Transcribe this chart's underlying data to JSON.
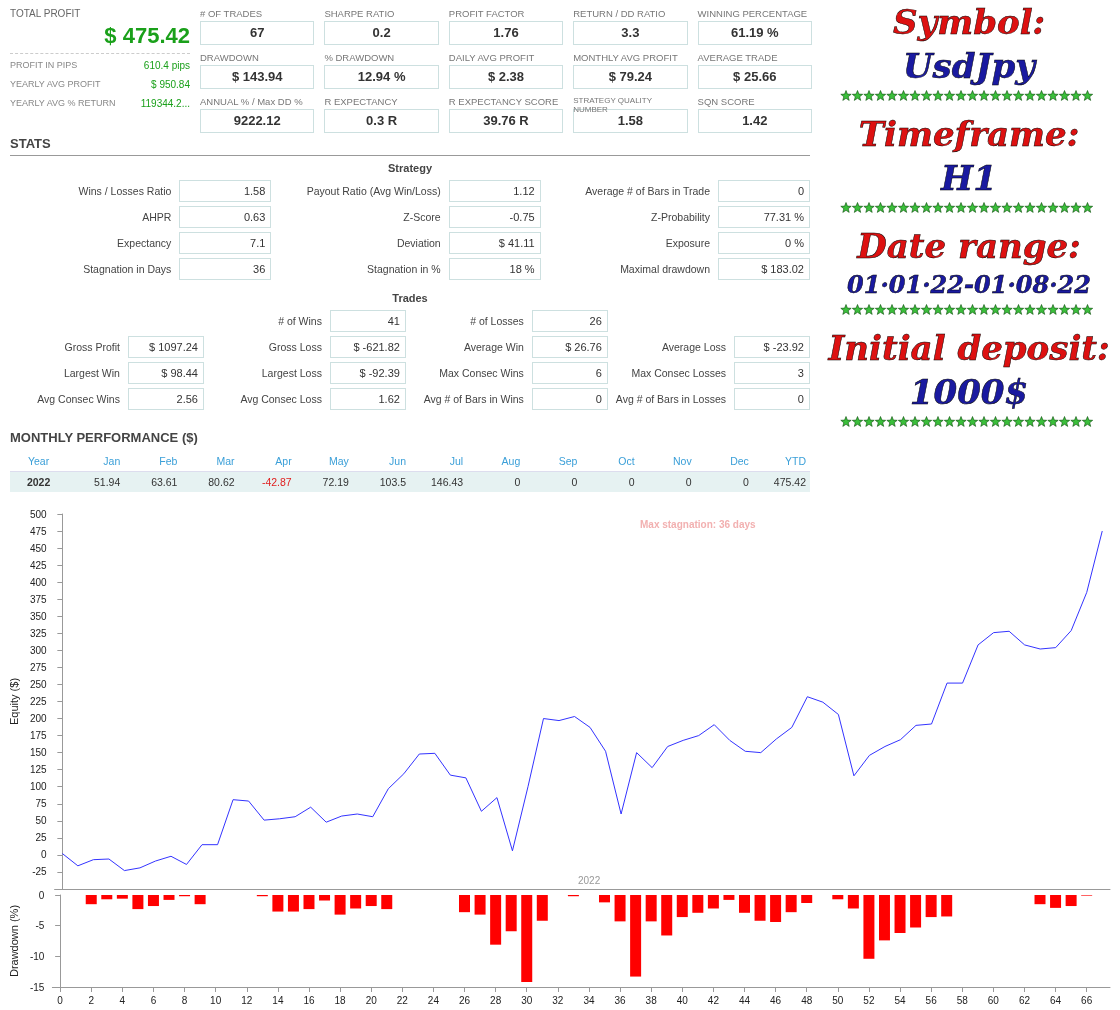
{
  "chart_data": [
    {
      "type": "other",
      "title": "TOTAL PROFIT",
      "annotations": [
        "$ 475.42",
        "PROFIT IN PIPS",
        "610.4 pips",
        "YEARLY AVG PROFIT",
        "$ 950.84",
        "YEARLY AVG % RETURN",
        "119344.2..."
      ]
    },
    {
      "type": "other",
      "annotations": [
        "# OF TRADES",
        "67",
        "SHARPE RATIO",
        "0.2",
        "PROFIT FACTOR",
        "1.76",
        "RETURN / DD RATIO",
        "3.3",
        "WINNING PERCENTAGE",
        "61.19 %",
        "DRAWDOWN",
        "$ 143.94",
        "% DRAWDOWN",
        "12.94 %",
        "DAILY AVG PROFIT",
        "$ 2.38",
        "MONTHLY AVG PROFIT",
        "$ 79.24",
        "AVERAGE TRADE",
        "$ 25.66",
        "ANNUAL % / Max DD %",
        "9222.12",
        "R EXPECTANCY",
        "0.3 R",
        "R EXPECTANCY SCORE",
        "39.76 R",
        "STRATEGY QUALITY NUMBER",
        "1.58",
        "SQN SCORE",
        "1.42"
      ]
    },
    {
      "type": "other",
      "annotations": [
        "Symbol:",
        "UsdJpy",
        "Timeframe:",
        "H1",
        "Date range:",
        "01·01·22-01·08·22",
        "Initial deposit:",
        "1000$"
      ]
    },
    {
      "type": "other",
      "title": "STATS",
      "subtitle": "Strategy",
      "annotations": [
        "Wins / Losses Ratio",
        "1.58",
        "Payout Ratio (Avg Win/Loss)",
        "1.12",
        "Average # of Bars in Trade",
        "0",
        "AHPR",
        "0.63",
        "Z-Score",
        "-0.75",
        "Z-Probability",
        "77.31 %",
        "Expectancy",
        "7.1",
        "Deviation",
        "$ 41.11",
        "Exposure",
        "0 %",
        "Stagnation in Days",
        "36",
        "Stagnation in %",
        "18 %",
        "Maximal drawdown",
        "$ 183.02"
      ]
    },
    {
      "type": "other",
      "subtitle": "Trades",
      "annotations": [
        "# of Wins",
        "41",
        "# of Losses",
        "26",
        "Gross Profit",
        "$ 1097.24",
        "Gross Loss",
        "$ -621.82",
        "Average Win",
        "$ 26.76",
        "Average Loss",
        "$ -23.92",
        "Largest Win",
        "$ 98.44",
        "Largest Loss",
        "$ -92.39",
        "Max Consec Wins",
        "6",
        "Max Consec Losses",
        "3",
        "Avg Consec Wins",
        "2.56",
        "Avg Consec Loss",
        "1.62",
        "Avg # of Bars in Wins",
        "0",
        "Avg # of Bars in Losses",
        "0"
      ]
    },
    {
      "type": "other",
      "title": "MONTHLY PERFORMANCE ($)",
      "annotations": [
        "Year",
        "Jan",
        "Feb",
        "Mar",
        "Apr",
        "May",
        "Jun",
        "Jul",
        "Aug",
        "Sep",
        "Oct",
        "Nov",
        "Dec",
        "YTD",
        "2022",
        "51.94",
        "63.61",
        "80.62",
        "-42.87",
        "72.19",
        "103.5",
        "146.43",
        "0",
        "0",
        "0",
        "0",
        "0",
        "475.42"
      ]
    },
    {
      "type": "line",
      "ylabel": "Equity ($)",
      "color": "#3333ff",
      "marker": "none",
      "tick_labels": "y",
      "annotations": [
        "Max stagnation: 36 days",
        "2022"
      ],
      "x": [
        0,
        1,
        2,
        3,
        4,
        5,
        6,
        7,
        8,
        9,
        10,
        11,
        12,
        13,
        14,
        15,
        16,
        17,
        18,
        19,
        20,
        21,
        22,
        23,
        24,
        25,
        26,
        27,
        28,
        29,
        30,
        31,
        32,
        33,
        34,
        35,
        36,
        37,
        38,
        39,
        40,
        41,
        42,
        43,
        44,
        45,
        46,
        47,
        48,
        49,
        50,
        51,
        52,
        53,
        54,
        55,
        56,
        57,
        58,
        59,
        60,
        61,
        62,
        63,
        64,
        65,
        66,
        67
      ],
      "values": [
        2,
        -16,
        -7,
        -6,
        -23,
        -19,
        -9,
        -2,
        -14,
        15,
        15,
        81,
        79,
        51,
        53,
        56,
        70,
        48,
        57,
        60,
        56,
        97,
        119,
        148,
        149,
        117,
        113,
        64,
        84,
        6,
        100,
        200,
        197,
        203,
        187,
        152,
        60,
        150,
        128,
        159,
        168,
        175,
        191,
        168,
        152,
        150,
        170,
        187,
        232,
        224,
        206,
        116,
        146,
        159,
        169,
        190,
        192,
        252,
        252,
        308,
        326,
        328,
        308,
        302,
        304,
        329,
        385,
        475
      ],
      "xlim": [
        -0.5,
        67.5
      ],
      "ylim": [
        -50,
        500
      ],
      "yticks": [
        -25,
        0,
        25,
        50,
        75,
        100,
        125,
        150,
        175,
        200,
        225,
        250,
        275,
        300,
        325,
        350,
        375,
        400,
        425,
        450,
        475,
        500
      ]
    },
    {
      "type": "bar",
      "ylabel": "Drawdown (%)",
      "color": "#ff0000",
      "x": [
        2,
        3,
        4,
        5,
        6,
        7,
        8,
        9,
        10,
        11,
        12,
        13,
        14,
        15,
        16,
        17,
        18,
        19,
        20,
        21,
        22,
        23,
        24,
        25,
        26,
        27,
        28,
        29,
        30,
        31,
        32,
        33,
        34,
        35,
        36,
        37,
        38,
        39,
        40,
        41,
        42,
        43,
        44,
        45,
        46,
        47,
        48,
        49,
        50,
        51,
        52,
        53,
        54,
        55,
        56,
        57,
        58,
        59,
        60,
        61,
        62,
        63,
        64,
        65,
        66
      ],
      "values": [
        -1.5,
        -0.7,
        -0.6,
        -2.3,
        -1.8,
        -0.8,
        -0.2,
        -1.5,
        null,
        null,
        null,
        -0.2,
        -2.7,
        -2.7,
        -2.3,
        -0.9,
        -3.2,
        -2.2,
        -1.8,
        -2.3,
        null,
        null,
        null,
        null,
        -2.8,
        -3.2,
        -8.1,
        -5.9,
        -14.2,
        -4.2,
        null,
        -0.2,
        null,
        -1.2,
        -4.3,
        -13.3,
        -4.3,
        -6.6,
        -3.6,
        -2.9,
        -2.2,
        -0.8,
        -2.9,
        -4.2,
        -4.4,
        -2.8,
        -1.3,
        null,
        -0.7,
        -2.2,
        -10.4,
        -7.4,
        -6.2,
        -5.3,
        -3.6,
        -3.5,
        null,
        null,
        null,
        null,
        null,
        -1.5,
        -2.1,
        -1.8,
        -0.1
      ],
      "xlim": [
        -0.5,
        67.5
      ],
      "ylim": [
        -15,
        0
      ],
      "yticks": [
        -15,
        -10,
        -5,
        0
      ],
      "xticks": [
        0,
        2,
        4,
        6,
        8,
        10,
        12,
        14,
        16,
        18,
        20,
        22,
        24,
        26,
        28,
        30,
        32,
        34,
        36,
        38,
        40,
        42,
        44,
        46,
        48,
        50,
        52,
        54,
        56,
        58,
        60,
        62,
        64,
        66
      ]
    }
  ]
}
